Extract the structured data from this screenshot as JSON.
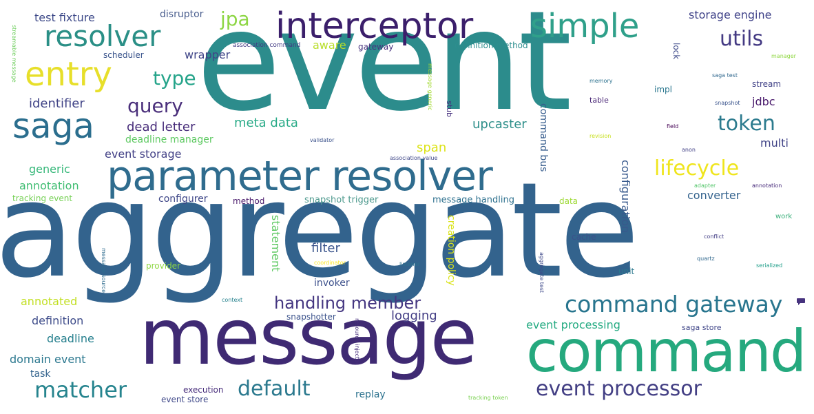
{
  "words": [
    {
      "text": "event",
      "color": "#2c8c8c"
    },
    {
      "text": "aggregate",
      "color": "#33638d"
    },
    {
      "text": "message",
      "color": "#3f2a73"
    },
    {
      "text": "command",
      "color": "#25a97e"
    },
    {
      "text": "parameter resolver",
      "color": "#2f6c8e"
    },
    {
      "text": "interceptor",
      "color": "#3b1f6b"
    },
    {
      "text": "resolver",
      "color": "#2a8f86"
    },
    {
      "text": "simple",
      "color": "#2fa08a"
    },
    {
      "text": "entry",
      "color": "#e7df2a"
    },
    {
      "text": "saga",
      "color": "#2b6e8e"
    },
    {
      "text": "command gateway",
      "color": "#28758e"
    },
    {
      "text": "event processor",
      "color": "#433f84"
    },
    {
      "text": "default",
      "color": "#2b798e"
    },
    {
      "text": "matcher",
      "color": "#26848e"
    },
    {
      "text": "token",
      "color": "#2c7b8e"
    },
    {
      "text": "utils",
      "color": "#443a83"
    },
    {
      "text": "lifecycle",
      "color": "#efe51c"
    },
    {
      "text": "jpa",
      "color": "#8dd644"
    },
    {
      "text": "type",
      "color": "#25a48a"
    },
    {
      "text": "query",
      "color": "#4a2f7b"
    },
    {
      "text": "handling member",
      "color": "#453781"
    },
    {
      "text": "test fixture",
      "color": "#3e4a89"
    },
    {
      "text": "disruptor",
      "color": "#4a5e8e"
    },
    {
      "text": "storage engine",
      "color": "#404389"
    },
    {
      "text": "wrapper",
      "color": "#404688"
    },
    {
      "text": "aware",
      "color": "#b8de29"
    },
    {
      "text": "gateway",
      "color": "#46327e"
    },
    {
      "text": "definition method",
      "color": "#2c8e8e"
    },
    {
      "text": "scheduler",
      "color": "#3a548c"
    },
    {
      "text": "association command",
      "color": "#423b84"
    },
    {
      "text": "identifier",
      "color": "#414487"
    },
    {
      "text": "dead letter",
      "color": "#472c7a"
    },
    {
      "text": "meta data",
      "color": "#2aab88"
    },
    {
      "text": "upcaster",
      "color": "#2e8f8a"
    },
    {
      "text": "deadline manager",
      "color": "#5ec962"
    },
    {
      "text": "event storage",
      "color": "#424086"
    },
    {
      "text": "span",
      "color": "#dce319"
    },
    {
      "text": "generic",
      "color": "#35b779"
    },
    {
      "text": "annotation",
      "color": "#40bd72"
    },
    {
      "text": "tracking event",
      "color": "#75d054"
    },
    {
      "text": "configurer",
      "color": "#3f4788"
    },
    {
      "text": "method",
      "color": "#48186a"
    },
    {
      "text": "snapshot trigger",
      "color": "#4e9a8e"
    },
    {
      "text": "message handling",
      "color": "#2d708e"
    },
    {
      "text": "converter",
      "color": "#33628d"
    },
    {
      "text": "data",
      "color": "#a0da39"
    },
    {
      "text": "work",
      "color": "#3aaf7a"
    },
    {
      "text": "jdbc",
      "color": "#48196b"
    },
    {
      "text": "multi",
      "color": "#414487"
    },
    {
      "text": "filter",
      "color": "#3a548c"
    },
    {
      "text": "provider",
      "color": "#8fd744"
    },
    {
      "text": "invoker",
      "color": "#3c508b"
    },
    {
      "text": "annotated",
      "color": "#c2df23"
    },
    {
      "text": "definition",
      "color": "#3e4c8a"
    },
    {
      "text": "deadline",
      "color": "#27808e"
    },
    {
      "text": "domain event",
      "color": "#2a778e"
    },
    {
      "text": "task",
      "color": "#33638d"
    },
    {
      "text": "logging",
      "color": "#433e85"
    },
    {
      "text": "event processing",
      "color": "#25ab82"
    },
    {
      "text": "saga store",
      "color": "#404688"
    },
    {
      "text": "execution",
      "color": "#472d7b"
    },
    {
      "text": "event store",
      "color": "#3f4889"
    },
    {
      "text": "replay",
      "color": "#2c728e"
    },
    {
      "text": "snapshotter",
      "color": "#3b528b"
    },
    {
      "text": "cache",
      "color": "#3b518b"
    },
    {
      "text": "unit",
      "color": "#2a788e"
    },
    {
      "text": "impl",
      "color": "#2a768e"
    },
    {
      "text": "table",
      "color": "#482576"
    },
    {
      "text": "stream",
      "color": "#414287"
    },
    {
      "text": "memory",
      "color": "#2c718e"
    },
    {
      "text": "snapshot",
      "color": "#3a548c"
    },
    {
      "text": "saga test",
      "color": "#31688e"
    },
    {
      "text": "field",
      "color": "#440154"
    },
    {
      "text": "revision",
      "color": "#c8e020"
    },
    {
      "text": "validator",
      "color": "#3b528b"
    },
    {
      "text": "association value",
      "color": "#3f4788"
    },
    {
      "text": "adapter",
      "color": "#52c569"
    },
    {
      "text": "annotation",
      "color": "#472a7a"
    },
    {
      "text": "conflict",
      "color": "#433e85"
    },
    {
      "text": "serialized",
      "color": "#1f9e89"
    },
    {
      "text": "quartz",
      "color": "#31688e"
    },
    {
      "text": "listener",
      "color": "#2d718e"
    },
    {
      "text": "coordinator",
      "color": "#fde725"
    },
    {
      "text": "context",
      "color": "#26828e"
    },
    {
      "text": "tracking token",
      "color": "#7ad151"
    },
    {
      "text": "manager",
      "color": "#90d743"
    },
    {
      "text": "anon",
      "color": "#424086"
    },
    {
      "text": "stub",
      "color": "#46307e"
    },
    {
      "text": "statement",
      "color": "#5ec962"
    },
    {
      "text": "creation policy",
      "color": "#dae319"
    },
    {
      "text": "configuration",
      "color": "#38598c"
    },
    {
      "text": "command bus",
      "color": "#365c8d"
    },
    {
      "text": "lock",
      "color": "#3e4a89"
    },
    {
      "text": "message generic",
      "color": "#a5db36"
    },
    {
      "text": "streamable message",
      "color": "#6ccd5a"
    },
    {
      "text": "message source",
      "color": "#2f6c8e"
    },
    {
      "text": "aggregate test",
      "color": "#3e4989"
    },
    {
      "text": "resource injector",
      "color": "#472f7d"
    }
  ]
}
